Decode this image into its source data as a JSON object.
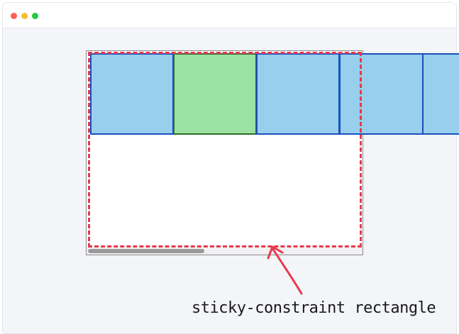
{
  "colors": {
    "window_background": "#f3f5f8",
    "titlebar_background": "#ffffff",
    "traffic_light_red": "#ff5f57",
    "traffic_light_yellow": "#febc2e",
    "traffic_light_green": "#28c840",
    "scroll_item_fill": "#97cfec",
    "scroll_item_border": "#1a4fbf",
    "sticky_item_fill": "#9be3a2",
    "sticky_item_border": "#2f6b2f",
    "constraint_outline": "#e8394d",
    "scrollbar_thumb": "#9a9a9a"
  },
  "diagram": {
    "items": [
      {
        "kind": "scroll-item",
        "color": "blue"
      },
      {
        "kind": "sticky-item",
        "color": "green"
      },
      {
        "kind": "scroll-item",
        "color": "blue"
      },
      {
        "kind": "scroll-item",
        "color": "blue"
      },
      {
        "kind": "scroll-item",
        "color": "blue"
      }
    ],
    "annotation": {
      "label": "sticky-constraint rectangle",
      "arrow_color": "#e8394d"
    }
  }
}
